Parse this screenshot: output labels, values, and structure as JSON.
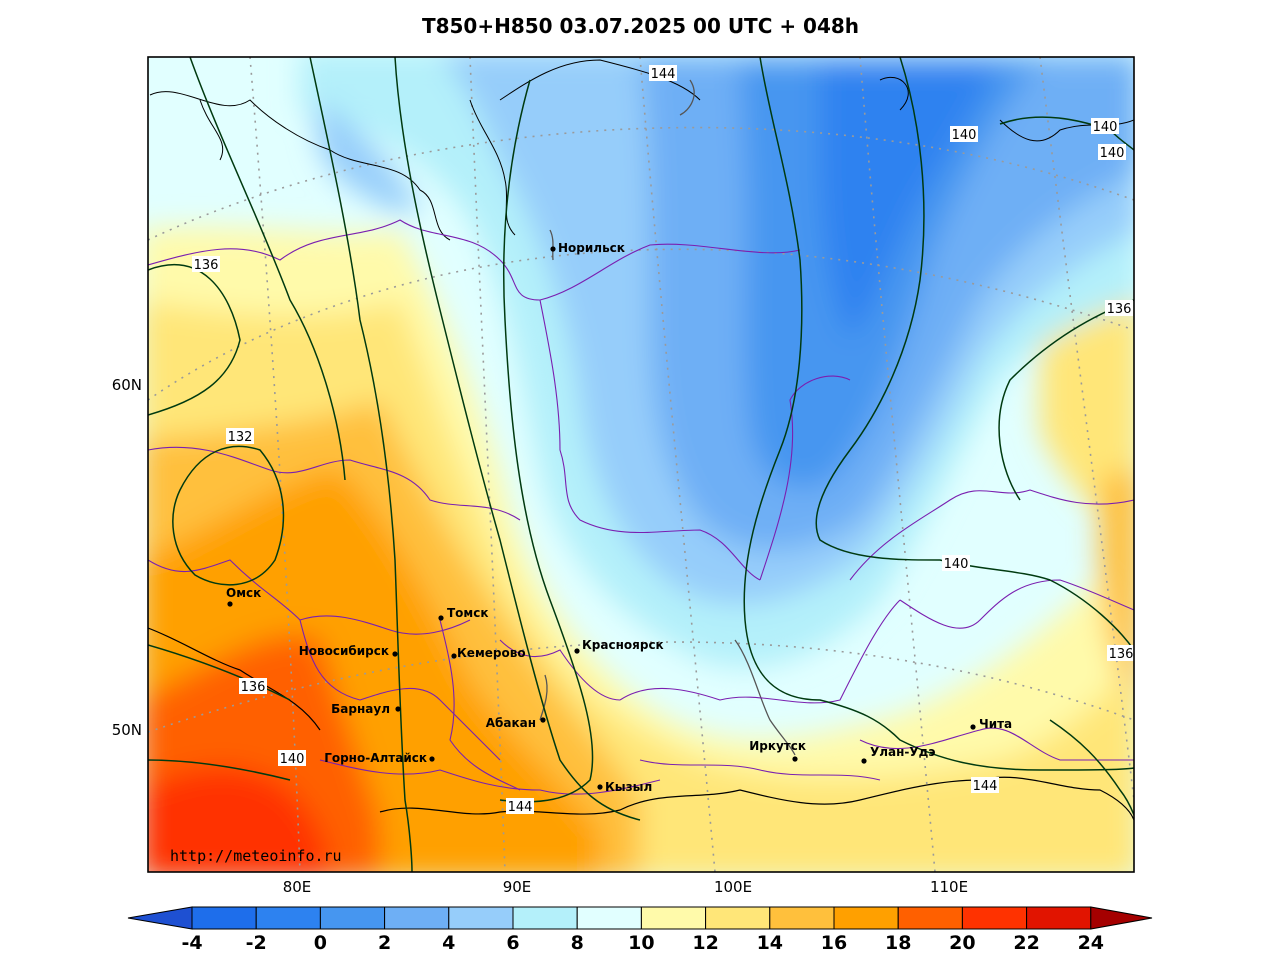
{
  "title": "T850+H850 03.07.2025 00 UTC + 048h",
  "watermark": "http://meteoinfo.ru",
  "lon_labels": [
    "80E",
    "90E",
    "100E",
    "110E"
  ],
  "lat_labels": [
    "60N",
    "50N"
  ],
  "cities": [
    {
      "name": "Норильск"
    },
    {
      "name": "Омск"
    },
    {
      "name": "Томск"
    },
    {
      "name": "Новосибирск"
    },
    {
      "name": "Кемерово"
    },
    {
      "name": "Красноярск"
    },
    {
      "name": "Барнаул"
    },
    {
      "name": "Абакан"
    },
    {
      "name": "Горно-Алтайск"
    },
    {
      "name": "Кызыл"
    },
    {
      "name": "Иркутск"
    },
    {
      "name": "Улан-Удэ"
    },
    {
      "name": "Чита"
    }
  ],
  "isohypse_labels": [
    "144",
    "140",
    "140",
    "140",
    "136",
    "136",
    "132",
    "136",
    "140",
    "144",
    "140",
    "144",
    "136"
  ],
  "colorbar": {
    "ticks": [
      "-4",
      "-2",
      "0",
      "2",
      "4",
      "6",
      "8",
      "10",
      "12",
      "14",
      "16",
      "18",
      "20",
      "22",
      "24"
    ],
    "colors": [
      "#1E6EEB",
      "#2D82F0",
      "#4696F0",
      "#6EAFF5",
      "#96CDFA",
      "#B4F0FA",
      "#E1FFFF",
      "#FFFAAA",
      "#FFE678",
      "#FFC03C",
      "#FFA000",
      "#FF6000",
      "#FF3200",
      "#E11400",
      "#C00000"
    ],
    "under_color": "#1E50D2",
    "over_color": "#A50000"
  }
}
